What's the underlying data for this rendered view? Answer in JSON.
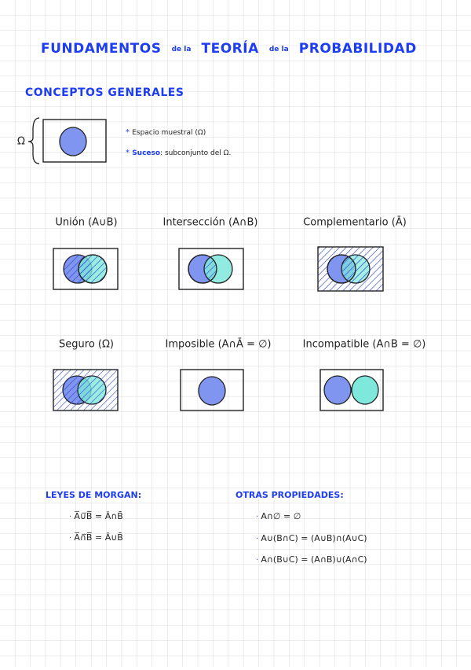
{
  "title": {
    "parts": [
      "FUNDAMENTOS",
      "de la",
      "TEORÍA",
      "de la",
      "PROBABILIDAD"
    ]
  },
  "concepts": {
    "heading": "CONCEPTOS GENERALES",
    "omega": "Ω",
    "items": [
      {
        "text": "Espacio muestral (Ω)"
      },
      {
        "term": "Suceso",
        "text": ": subconjunto del Ω."
      }
    ]
  },
  "venns": [
    {
      "label": "Unión (A∪B)"
    },
    {
      "label": "Intersección (A∩B)"
    },
    {
      "label": "Complementario (Ā)"
    },
    {
      "label": "Seguro (Ω)"
    },
    {
      "label": "Imposible (A∩Ā = ∅)"
    },
    {
      "label": "Incompatible (A∩B = ∅)"
    }
  ],
  "laws": {
    "heading": "LEYES DE MORGAN:",
    "items": [
      "A̅∪̅B̅ = Ā∩B̄",
      "A̅∩̅B̅ = Ā∪B̄"
    ]
  },
  "properties": {
    "heading": "OTRAS PROPIEDADES:",
    "items": [
      "A∩∅ = ∅",
      "A∪(B∩C) = (A∪B)∩(A∪C)",
      "A∩(B∪C) = (A∩B)∪(A∩C)"
    ]
  }
}
